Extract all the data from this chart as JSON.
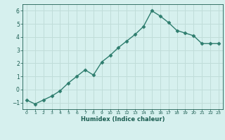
{
  "x": [
    0,
    1,
    2,
    3,
    4,
    5,
    6,
    7,
    8,
    9,
    10,
    11,
    12,
    13,
    14,
    15,
    16,
    17,
    18,
    19,
    20,
    21,
    22,
    23
  ],
  "y": [
    -0.8,
    -1.1,
    -0.8,
    -0.5,
    -0.1,
    0.5,
    1.0,
    1.5,
    1.1,
    2.1,
    2.6,
    3.2,
    3.7,
    4.2,
    4.8,
    6.0,
    5.6,
    5.1,
    4.5,
    4.3,
    4.1,
    3.5,
    3.5,
    3.5
  ],
  "line_color": "#2e7d6e",
  "marker": "D",
  "marker_size": 2.5,
  "background_color": "#d6f0ee",
  "grid_color": "#c0ddd9",
  "xlabel": "Humidex (Indice chaleur)",
  "xlabel_color": "#1a5c50",
  "tick_color": "#1a5c50",
  "ylim": [
    -1.5,
    6.5
  ],
  "xlim": [
    -0.5,
    23.5
  ],
  "yticks": [
    -1,
    0,
    1,
    2,
    3,
    4,
    5,
    6
  ],
  "xticks": [
    0,
    1,
    2,
    3,
    4,
    5,
    6,
    7,
    8,
    9,
    10,
    11,
    12,
    13,
    14,
    15,
    16,
    17,
    18,
    19,
    20,
    21,
    22,
    23
  ],
  "line_width": 1.0
}
